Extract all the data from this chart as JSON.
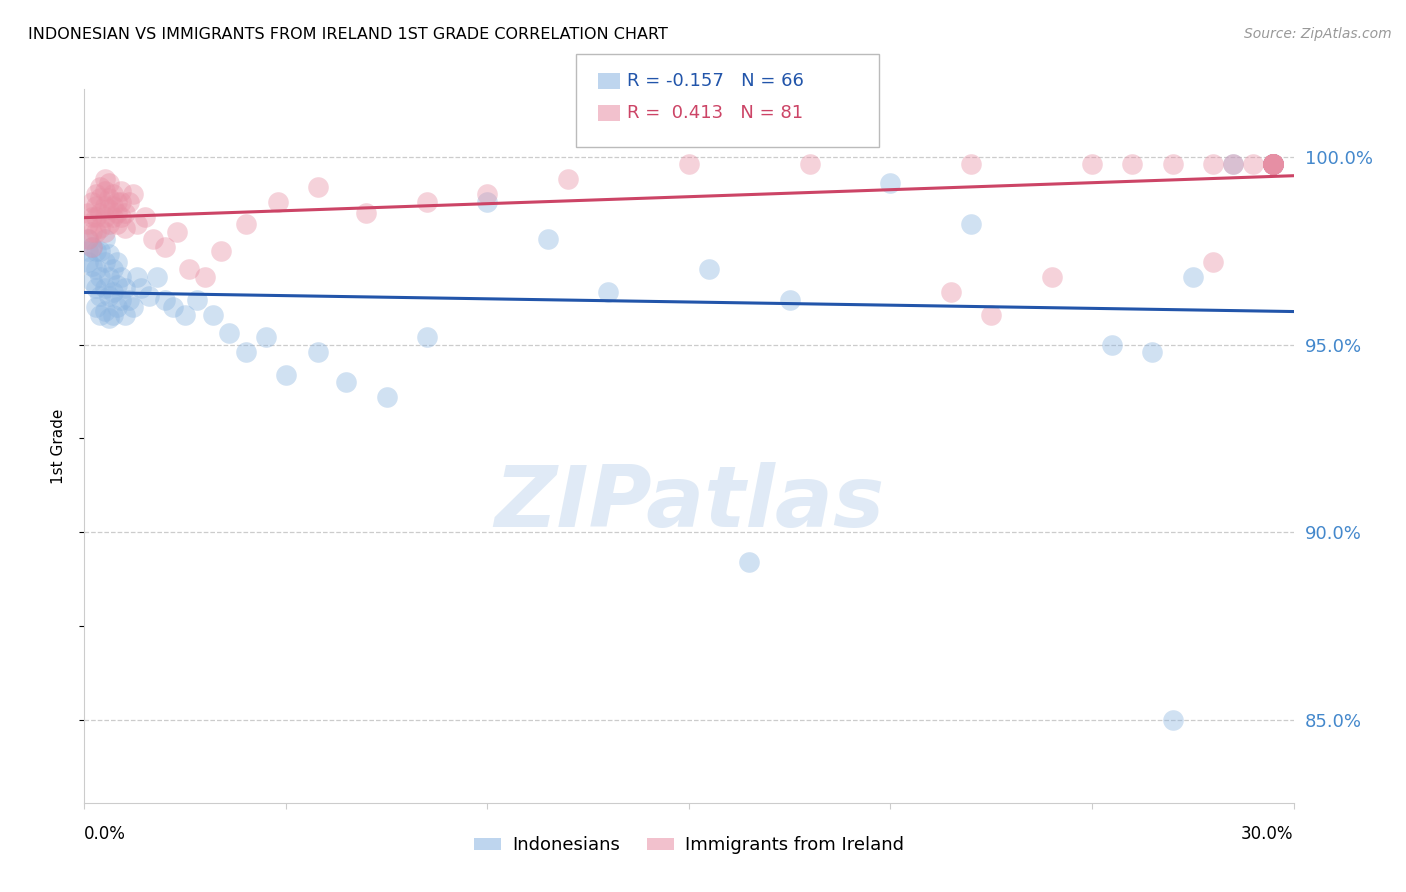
{
  "title": "INDONESIAN VS IMMIGRANTS FROM IRELAND 1ST GRADE CORRELATION CHART",
  "source": "Source: ZipAtlas.com",
  "ylabel": "1st Grade",
  "ytick_values": [
    0.85,
    0.9,
    0.95,
    1.0
  ],
  "xlim": [
    0.0,
    0.3
  ],
  "ylim": [
    0.828,
    1.018
  ],
  "legend_blue_label": "Indonesians",
  "legend_pink_label": "Immigrants from Ireland",
  "R_blue": -0.157,
  "N_blue": 66,
  "R_pink": 0.413,
  "N_pink": 81,
  "blue_color": "#8ab4e0",
  "pink_color": "#e88fa4",
  "blue_line_color": "#2255aa",
  "pink_line_color": "#cc4466",
  "blue_scatter_x": [
    0.001,
    0.001,
    0.001,
    0.002,
    0.002,
    0.002,
    0.003,
    0.003,
    0.003,
    0.003,
    0.004,
    0.004,
    0.004,
    0.004,
    0.005,
    0.005,
    0.005,
    0.005,
    0.006,
    0.006,
    0.006,
    0.006,
    0.007,
    0.007,
    0.007,
    0.008,
    0.008,
    0.008,
    0.009,
    0.009,
    0.01,
    0.01,
    0.011,
    0.012,
    0.013,
    0.014,
    0.016,
    0.018,
    0.02,
    0.022,
    0.025,
    0.028,
    0.032,
    0.036,
    0.04,
    0.045,
    0.05,
    0.058,
    0.065,
    0.075,
    0.085,
    0.1,
    0.115,
    0.13,
    0.155,
    0.175,
    0.2,
    0.22,
    0.255,
    0.265,
    0.275,
    0.285,
    0.295,
    0.295,
    0.27,
    0.165
  ],
  "blue_scatter_y": [
    0.978,
    0.975,
    0.972,
    0.976,
    0.971,
    0.967,
    0.975,
    0.97,
    0.965,
    0.96,
    0.975,
    0.968,
    0.963,
    0.958,
    0.978,
    0.972,
    0.965,
    0.959,
    0.974,
    0.968,
    0.963,
    0.957,
    0.97,
    0.964,
    0.958,
    0.972,
    0.966,
    0.96,
    0.968,
    0.962,
    0.965,
    0.958,
    0.962,
    0.96,
    0.968,
    0.965,
    0.963,
    0.968,
    0.962,
    0.96,
    0.958,
    0.962,
    0.958,
    0.953,
    0.948,
    0.952,
    0.942,
    0.948,
    0.94,
    0.936,
    0.952,
    0.988,
    0.978,
    0.964,
    0.97,
    0.962,
    0.993,
    0.982,
    0.95,
    0.948,
    0.968,
    0.998,
    0.998,
    0.998,
    0.85,
    0.892
  ],
  "pink_scatter_x": [
    0.001,
    0.001,
    0.001,
    0.002,
    0.002,
    0.002,
    0.002,
    0.003,
    0.003,
    0.003,
    0.003,
    0.004,
    0.004,
    0.004,
    0.004,
    0.005,
    0.005,
    0.005,
    0.005,
    0.005,
    0.006,
    0.006,
    0.006,
    0.006,
    0.007,
    0.007,
    0.007,
    0.008,
    0.008,
    0.008,
    0.009,
    0.009,
    0.009,
    0.01,
    0.01,
    0.011,
    0.012,
    0.013,
    0.015,
    0.017,
    0.02,
    0.023,
    0.026,
    0.03,
    0.034,
    0.04,
    0.048,
    0.058,
    0.07,
    0.085,
    0.1,
    0.12,
    0.15,
    0.18,
    0.22,
    0.25,
    0.26,
    0.27,
    0.28,
    0.285,
    0.29,
    0.295,
    0.295,
    0.295,
    0.295,
    0.295,
    0.295,
    0.295,
    0.295,
    0.295,
    0.295,
    0.295,
    0.295,
    0.295,
    0.295,
    0.295,
    0.295,
    0.215,
    0.225,
    0.24,
    0.28
  ],
  "pink_scatter_y": [
    0.985,
    0.982,
    0.978,
    0.988,
    0.984,
    0.98,
    0.976,
    0.99,
    0.987,
    0.984,
    0.98,
    0.992,
    0.989,
    0.985,
    0.981,
    0.994,
    0.991,
    0.987,
    0.984,
    0.98,
    0.993,
    0.989,
    0.986,
    0.982,
    0.99,
    0.987,
    0.984,
    0.988,
    0.985,
    0.982,
    0.991,
    0.988,
    0.984,
    0.985,
    0.981,
    0.988,
    0.99,
    0.982,
    0.984,
    0.978,
    0.976,
    0.98,
    0.97,
    0.968,
    0.975,
    0.982,
    0.988,
    0.992,
    0.985,
    0.988,
    0.99,
    0.994,
    0.998,
    0.998,
    0.998,
    0.998,
    0.998,
    0.998,
    0.998,
    0.998,
    0.998,
    0.998,
    0.998,
    0.998,
    0.998,
    0.998,
    0.998,
    0.998,
    0.998,
    0.998,
    0.998,
    0.998,
    0.998,
    0.998,
    0.998,
    0.998,
    0.998,
    0.964,
    0.958,
    0.968,
    0.972
  ]
}
